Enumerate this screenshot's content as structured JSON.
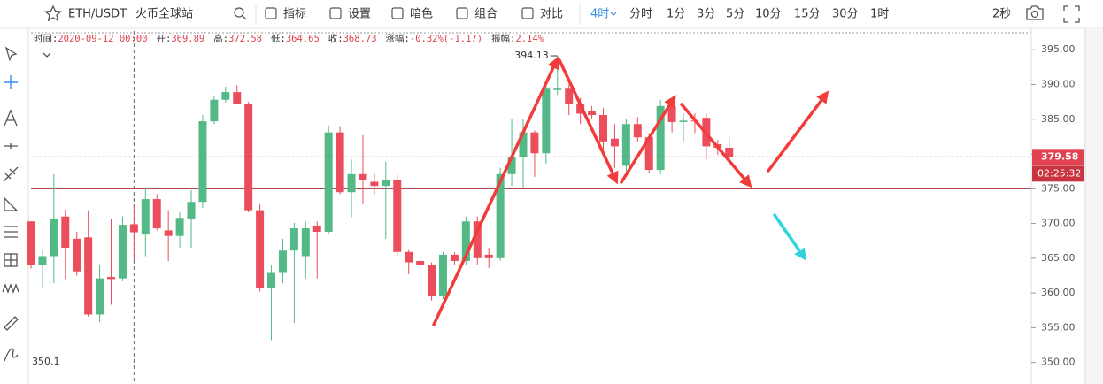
{
  "toolbar": {
    "symbol": "ETH/USDT",
    "exchange": "火币全球站",
    "buttons": [
      "指标",
      "设置",
      "暗色",
      "组合",
      "对比"
    ],
    "active_interval": "4时",
    "intervals": [
      "分时",
      "1分",
      "3分",
      "5分",
      "10分",
      "15分",
      "30分",
      "1时"
    ],
    "refresh": "2秒"
  },
  "info": {
    "time_label": "时间:",
    "time": "2020-09-12 00:00",
    "open_label": "开:",
    "high_label": "高:",
    "low_label": "低:",
    "close_label": "收:",
    "change_label": "涨幅:",
    "change": "-0.32%(-1.17)",
    "amplitude_label": "振幅:",
    "amplitude": "2.14%"
  },
  "crosshair_label": "350.1",
  "countdown": "02:25:32",
  "chart_data": {
    "type": "candlestick",
    "up_color": "#53b987",
    "down_color": "#eb4d5c",
    "ylim": [
      346.9,
      397.7
    ],
    "yticks": [
      {
        "value": 395,
        "label": "395.00"
      },
      {
        "value": 390,
        "label": "390.00"
      },
      {
        "value": 385,
        "label": "385.00"
      },
      {
        "value": 380,
        "label": "380.00"
      },
      {
        "value": 375,
        "label": "375.00"
      },
      {
        "value": 370,
        "label": "370.00"
      },
      {
        "value": 365,
        "label": "365.00"
      },
      {
        "value": 360,
        "label": "360.00"
      },
      {
        "value": 355,
        "label": "355.00"
      },
      {
        "value": 350,
        "label": "350.00"
      }
    ],
    "hline": 375,
    "open": [
      370.3,
      364.0,
      365.3,
      371.0,
      367.8,
      368.0,
      356.9,
      362.3,
      362.1,
      369.89,
      368.4,
      373.5,
      369.0,
      368.2,
      370.7,
      373.1,
      384.7,
      387.8,
      388.9,
      387.2,
      371.9,
      360.7,
      363.0,
      366.1,
      365.3,
      369.7,
      368.8,
      383.1,
      374.5,
      377.1,
      376.0,
      375.4,
      376.3,
      365.9,
      364.6,
      364.0,
      359.5,
      365.5,
      364.6,
      370.3,
      365.5,
      365.0,
      377.1,
      379.6,
      383.1,
      380.1,
      389.2,
      389.4,
      387.2,
      386.2,
      385.6,
      382.2,
      378.3,
      384.3,
      382.4,
      377.7,
      386.9,
      384.6,
      384.8,
      385.2,
      381.4,
      380.9
    ],
    "high": [
      370.3,
      366.3,
      377.1,
      372.0,
      368.8,
      371.9,
      364.0,
      370.6,
      371.0,
      372.58,
      375.2,
      374.2,
      371.9,
      371.6,
      374.8,
      385.6,
      388.4,
      389.7,
      389.9,
      387.5,
      372.9,
      364.0,
      367.8,
      370.1,
      370.3,
      370.3,
      384.1,
      384.0,
      379.2,
      382.7,
      377.3,
      378.9,
      377.0,
      366.3,
      365.3,
      364.4,
      365.9,
      365.9,
      371.0,
      371.0,
      366.5,
      378.0,
      385.0,
      385.0,
      383.4,
      389.7,
      394.13,
      390.0,
      388.1,
      386.9,
      386.6,
      384.3,
      385.0,
      385.3,
      383.0,
      387.8,
      388.1,
      385.8,
      385.8,
      385.8,
      382.0,
      382.4
    ],
    "low": [
      363.5,
      360.7,
      361.4,
      362.0,
      362.5,
      356.6,
      355.8,
      358.3,
      361.7,
      364.65,
      365.3,
      369.0,
      364.6,
      366.5,
      366.5,
      372.2,
      384.3,
      387.4,
      387.1,
      371.6,
      360.2,
      353.2,
      361.4,
      355.7,
      362.1,
      362.1,
      368.4,
      374.2,
      370.9,
      372.9,
      374.2,
      367.8,
      365.3,
      362.7,
      362.7,
      358.9,
      359.1,
      364.0,
      364.0,
      364.0,
      363.6,
      364.6,
      375.4,
      375.2,
      376.7,
      378.6,
      388.5,
      385.6,
      384.3,
      385.0,
      379.9,
      378.0,
      377.3,
      381.8,
      377.3,
      377.1,
      383.1,
      381.8,
      383.0,
      379.2,
      379.9,
      379.2
    ],
    "close": [
      364.0,
      365.3,
      370.7,
      366.5,
      363.1,
      356.9,
      362.1,
      362.0,
      369.8,
      368.73,
      373.5,
      369.3,
      368.2,
      370.8,
      373.1,
      384.7,
      387.8,
      388.9,
      387.2,
      371.9,
      360.7,
      363.0,
      366.1,
      369.3,
      369.3,
      368.8,
      383.1,
      374.5,
      377.1,
      376.3,
      375.4,
      376.3,
      365.9,
      364.4,
      364.0,
      359.5,
      365.5,
      364.6,
      370.3,
      365.0,
      365.0,
      377.1,
      379.6,
      383.1,
      380.1,
      389.4,
      389.4,
      387.2,
      385.8,
      385.6,
      381.8,
      381.1,
      384.3,
      382.4,
      377.7,
      386.9,
      384.6,
      384.8,
      384.7,
      381.1,
      380.9,
      379.58
    ]
  }
}
